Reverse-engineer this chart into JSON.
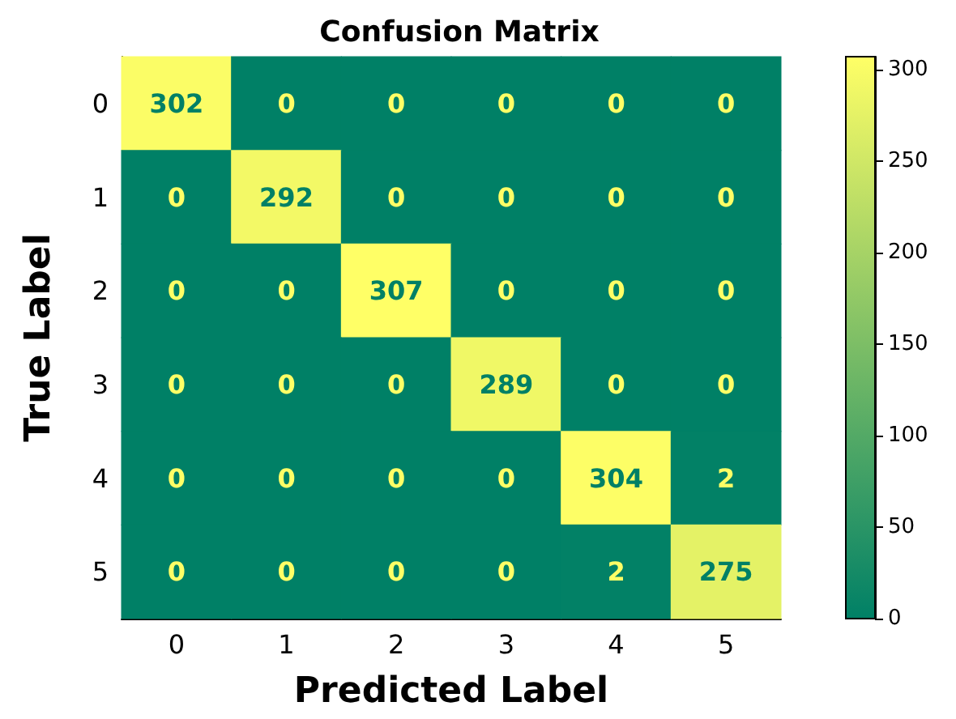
{
  "chart_data": {
    "type": "heatmap",
    "title": "Confusion Matrix",
    "xlabel": "Predicted Label",
    "ylabel": "True Label",
    "categories": [
      "0",
      "1",
      "2",
      "3",
      "4",
      "5"
    ],
    "y_categories": [
      "0",
      "1",
      "2",
      "3",
      "4",
      "5"
    ],
    "cells": [
      [
        302,
        0,
        0,
        0,
        0,
        0
      ],
      [
        0,
        292,
        0,
        0,
        0,
        0
      ],
      [
        0,
        0,
        307,
        0,
        0,
        0
      ],
      [
        0,
        0,
        0,
        289,
        0,
        0
      ],
      [
        0,
        0,
        0,
        0,
        304,
        2
      ],
      [
        0,
        0,
        0,
        0,
        2,
        275
      ]
    ],
    "data_labels": true,
    "clim": [
      0,
      307
    ],
    "cticks": [
      0,
      50,
      100,
      150,
      200,
      250,
      300
    ]
  }
}
